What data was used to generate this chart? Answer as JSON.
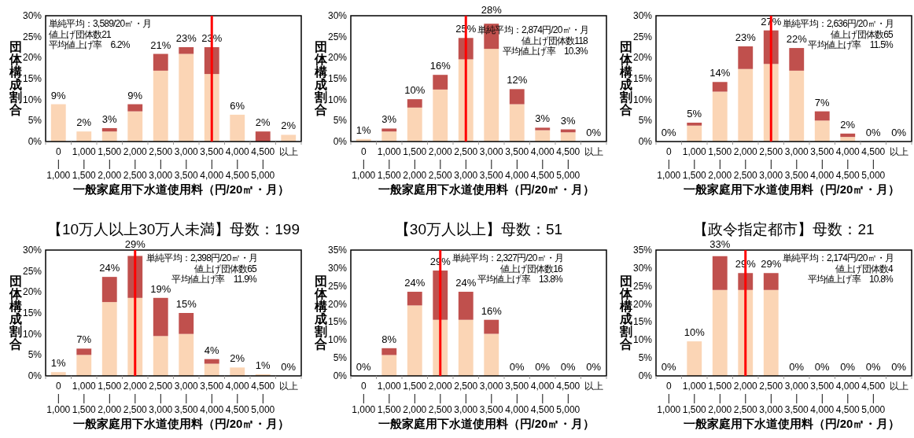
{
  "chart_data": [
    {
      "type": "bar",
      "stacked": true,
      "categories": [
        "0\n|\n1,000",
        "1,000\n|\n1,500",
        "1,500\n|\n2,000",
        "2,000\n|\n2,500",
        "2,500\n|\n3,000",
        "3,000\n|\n3,500",
        "3,500\n|\n4,000",
        "4,000\n|\n4,500",
        "4,500\n|\n5,000",
        "以上"
      ],
      "series": [
        {
          "color": "#fbd5b5",
          "values": [
            8.9,
            2.4,
            2.4,
            7.2,
            16.9,
            20.9,
            16.1,
            6.4,
            0,
            1.6
          ]
        },
        {
          "color": "#c0504d",
          "values": [
            0,
            0,
            0.8,
            1.7,
            4.0,
            1.6,
            6.4,
            0,
            2.4,
            0
          ]
        }
      ],
      "totals": [
        "9%",
        "2%",
        "3%",
        "9%",
        "21%",
        "23%",
        "23%",
        "6%",
        "2%",
        "2%"
      ],
      "ylim": [
        0,
        30
      ],
      "yticks": [
        {
          "value": 0,
          "label": "0%"
        },
        {
          "value": 5,
          "label": "5%"
        },
        {
          "value": 10,
          "label": "10%"
        },
        {
          "value": 15,
          "label": "15%"
        },
        {
          "value": 20,
          "label": "20%"
        },
        {
          "value": 25,
          "label": "25%"
        },
        {
          "value": 30,
          "label": "30%"
        }
      ],
      "ylabel": "団体構成割合",
      "xlabel": "一般家庭用下水道使用料（円/20㎡・月）",
      "ref_lines": [
        {
          "axis": "x",
          "value": "3,500\n|\n4,000",
          "color": "#ff0000"
        }
      ],
      "annotations": [
        "単純平均：3,589/20㎡・月",
        "値上げ団体数21",
        "平均値上げ率　6.2%"
      ]
    },
    {
      "type": "bar",
      "stacked": true,
      "categories": [
        "0\n|\n1,000",
        "1,000\n|\n1,500",
        "1,500\n|\n2,000",
        "2,000\n|\n2,500",
        "2,500\n|\n3,000",
        "3,000\n|\n3,500",
        "3,500\n|\n4,000",
        "4,000\n|\n4,500",
        "4,500\n|\n5,000",
        "以上"
      ],
      "series": [
        {
          "color": "#fbd5b5",
          "values": [
            0.6,
            2.4,
            8.1,
            12.4,
            19.6,
            22.1,
            8.9,
            2.7,
            2.2,
            0
          ]
        },
        {
          "color": "#c0504d",
          "values": [
            0,
            0.7,
            2.0,
            3.5,
            5.1,
            6.0,
            3.6,
            0.6,
            0.7,
            0
          ]
        }
      ],
      "totals": [
        "1%",
        "3%",
        "10%",
        "16%",
        "25%",
        "28%",
        "12%",
        "3%",
        "3%",
        "0%"
      ],
      "ylim": [
        0,
        30
      ],
      "yticks": [
        {
          "value": 0,
          "label": "0%"
        },
        {
          "value": 5,
          "label": "5%"
        },
        {
          "value": 10,
          "label": "10%"
        },
        {
          "value": 15,
          "label": "15%"
        },
        {
          "value": 20,
          "label": "20%"
        },
        {
          "value": 25,
          "label": "25%"
        },
        {
          "value": 30,
          "label": "30%"
        }
      ],
      "ylabel": "団体構成割合",
      "xlabel": "一般家庭用下水道使用料（円/20㎡・月）",
      "ref_lines": [
        {
          "axis": "x",
          "value": "2,500\n|\n3,000",
          "color": "#ff0000"
        }
      ],
      "annotations": [
        "単純平均：2,874円/20㎡・月",
        "値上げ団体数118",
        "平均値上げ率　10.3%"
      ]
    },
    {
      "type": "bar",
      "stacked": true,
      "categories": [
        "0\n|\n1,000",
        "1,000\n|\n1,500",
        "1,500\n|\n2,000",
        "2,000\n|\n2,500",
        "2,500\n|\n3,000",
        "3,000\n|\n3,500",
        "3,500\n|\n4,000",
        "4,000\n|\n4,500",
        "4,500\n|\n5,000",
        "以上"
      ],
      "series": [
        {
          "color": "#fbd5b5",
          "values": [
            0,
            3.8,
            11.9,
            17.3,
            18.5,
            16.9,
            5.0,
            1.1,
            0,
            0
          ]
        },
        {
          "color": "#c0504d",
          "values": [
            0,
            0.7,
            2.3,
            5.4,
            8.0,
            5.4,
            2.2,
            0.8,
            0,
            0
          ]
        }
      ],
      "totals": [
        "0%",
        "5%",
        "14%",
        "23%",
        "27%",
        "22%",
        "7%",
        "2%",
        "0%",
        "0%"
      ],
      "ylim": [
        0,
        30
      ],
      "yticks": [
        {
          "value": 0,
          "label": "0%"
        },
        {
          "value": 5,
          "label": "5%"
        },
        {
          "value": 10,
          "label": "10%"
        },
        {
          "value": 15,
          "label": "15%"
        },
        {
          "value": 20,
          "label": "20%"
        },
        {
          "value": 25,
          "label": "25%"
        },
        {
          "value": 30,
          "label": "30%"
        }
      ],
      "ylabel": "団体構成割合",
      "xlabel": "一般家庭用下水道使用料（円/20㎡・月）",
      "ref_lines": [
        {
          "axis": "x",
          "value": "2,500\n|\n3,000",
          "color": "#ff0000"
        }
      ],
      "annotations": [
        "単純平均：2,636円/20㎡・月",
        "値上げ団体数65",
        "平均値上げ率　11.5%"
      ]
    },
    {
      "type": "bar",
      "stacked": true,
      "title": "【10万人以上30万人未満】母数：199",
      "categories": [
        "0\n|\n1,000",
        "1,000\n|\n1,500",
        "1,500\n|\n2,000",
        "2,000\n|\n2,500",
        "2,500\n|\n3,000",
        "3,000\n|\n3,500",
        "3,500\n|\n4,000",
        "4,000\n|\n4,500",
        "4,500\n|\n5,000",
        "以上"
      ],
      "series": [
        {
          "color": "#fbd5b5",
          "values": [
            0.9,
            5.0,
            17.6,
            18.6,
            9.5,
            10.0,
            2.9,
            2.0,
            0.4,
            0
          ]
        },
        {
          "color": "#c0504d",
          "values": [
            0,
            1.5,
            6.0,
            10.0,
            9.1,
            5.0,
            1.1,
            0,
            0,
            0
          ]
        }
      ],
      "totals": [
        "1%",
        "7%",
        "24%",
        "29%",
        "19%",
        "15%",
        "4%",
        "2%",
        "1%",
        "0%"
      ],
      "ylim": [
        0,
        30
      ],
      "yticks": [
        {
          "value": 0,
          "label": "0%"
        },
        {
          "value": 5,
          "label": "5%"
        },
        {
          "value": 10,
          "label": "10%"
        },
        {
          "value": 15,
          "label": "15%"
        },
        {
          "value": 20,
          "label": "20%"
        },
        {
          "value": 25,
          "label": "25%"
        },
        {
          "value": 30,
          "label": "30%"
        }
      ],
      "ylabel": "団体構成割合",
      "xlabel": "一般家庭用下水道使用料（円/20㎡・月）",
      "ref_lines": [
        {
          "axis": "x",
          "value": "2,000\n|\n2,500",
          "color": "#ff0000"
        }
      ],
      "annotations": [
        "単純平均：2,398円/20㎡・月",
        "値上げ団体数65",
        "平均値上げ率　11.9%"
      ]
    },
    {
      "type": "bar",
      "stacked": true,
      "title": "【30万人以上】母数：51",
      "categories": [
        "0\n|\n1,000",
        "1,000\n|\n1,500",
        "1,500\n|\n2,000",
        "2,000\n|\n2,500",
        "2,500\n|\n3,000",
        "3,000\n|\n3,500",
        "3,500\n|\n4,000",
        "4,000\n|\n4,500",
        "4,500\n|\n5,000",
        "以上"
      ],
      "series": [
        {
          "color": "#fbd5b5",
          "values": [
            0,
            5.8,
            19.6,
            15.6,
            15.6,
            11.7,
            0,
            0,
            0,
            0
          ]
        },
        {
          "color": "#c0504d",
          "values": [
            0,
            1.9,
            3.8,
            13.7,
            7.8,
            3.9,
            0,
            0,
            0,
            0
          ]
        }
      ],
      "totals": [
        "0%",
        "8%",
        "24%",
        "29%",
        "24%",
        "16%",
        "0%",
        "0%",
        "0%",
        "0%"
      ],
      "ylim": [
        0,
        35
      ],
      "yticks": [
        {
          "value": 0,
          "label": "0%"
        },
        {
          "value": 5,
          "label": "5%"
        },
        {
          "value": 10,
          "label": "10%"
        },
        {
          "value": 15,
          "label": "15%"
        },
        {
          "value": 20,
          "label": "20%"
        },
        {
          "value": 25,
          "label": "25%"
        },
        {
          "value": 30,
          "label": "30%"
        },
        {
          "value": 35,
          "label": "35%"
        }
      ],
      "ylabel": "団体構成割合",
      "xlabel": "一般家庭用下水道使用料（円/20㎡・月）",
      "ref_lines": [
        {
          "axis": "x",
          "value": "2,000\n|\n2,500",
          "color": "#ff0000"
        }
      ],
      "annotations": [
        "単純平均：2,327円/20㎡・月",
        "値上げ団体数16",
        "平均値上げ率　13.8%"
      ]
    },
    {
      "type": "bar",
      "stacked": true,
      "title": "【政令指定都市】母数：21",
      "categories": [
        "0\n|\n1,000",
        "1,000\n|\n1,500",
        "1,500\n|\n2,000",
        "2,000\n|\n2,500",
        "2,500\n|\n3,000",
        "3,000\n|\n3,500",
        "3,500\n|\n4,000",
        "4,000\n|\n4,500",
        "4,500\n|\n5,000",
        "以上"
      ],
      "series": [
        {
          "color": "#fbd5b5",
          "values": [
            0,
            9.6,
            23.9,
            23.9,
            23.9,
            0,
            0,
            0,
            0,
            0
          ]
        },
        {
          "color": "#c0504d",
          "values": [
            0,
            0,
            9.4,
            4.7,
            4.7,
            0,
            0,
            0,
            0,
            0
          ]
        }
      ],
      "totals": [
        "0%",
        "10%",
        "33%",
        "29%",
        "29%",
        "0%",
        "0%",
        "0%",
        "0%",
        "0%"
      ],
      "ylim": [
        0,
        35
      ],
      "yticks": [
        {
          "value": 0,
          "label": "0%"
        },
        {
          "value": 5,
          "label": "5%"
        },
        {
          "value": 10,
          "label": "10%"
        },
        {
          "value": 15,
          "label": "15%"
        },
        {
          "value": 20,
          "label": "20%"
        },
        {
          "value": 25,
          "label": "25%"
        },
        {
          "value": 30,
          "label": "30%"
        },
        {
          "value": 35,
          "label": "35%"
        }
      ],
      "ylabel": "団体構成割合",
      "xlabel": "一般家庭用下水道使用料（円/20㎡・月）",
      "ref_lines": [
        {
          "axis": "x",
          "value": "2,000\n|\n2,500",
          "color": "#ff0000"
        }
      ],
      "annotations": [
        "単純平均：2,174円/20㎡・月",
        "値上げ団体数4",
        "平均値上げ率　10.8%"
      ]
    }
  ]
}
